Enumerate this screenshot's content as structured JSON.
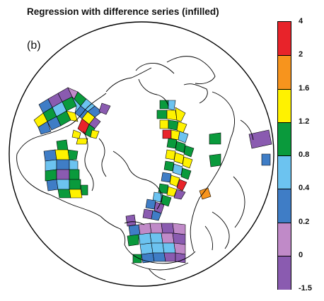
{
  "title": "Regression with difference series (infilled)",
  "panel_label": "(b)",
  "legend": {
    "labels": [
      "4",
      "2",
      "1.6",
      "1.2",
      "0.8",
      "0.4",
      "0.2",
      "0",
      "-1.5"
    ],
    "colors": [
      "#e8232a",
      "#f7941d",
      "#fff200",
      "#0a9a3c",
      "#6cc3f0",
      "#3f7dc6",
      "#c08ac8",
      "#8a5bb0"
    ]
  },
  "map": {
    "projection": "north polar stereographic",
    "coastline_color": "#000000",
    "cell_colors_shown": [
      "red",
      "orange",
      "yellow",
      "green",
      "light-blue",
      "blue",
      "pink",
      "purple"
    ]
  }
}
